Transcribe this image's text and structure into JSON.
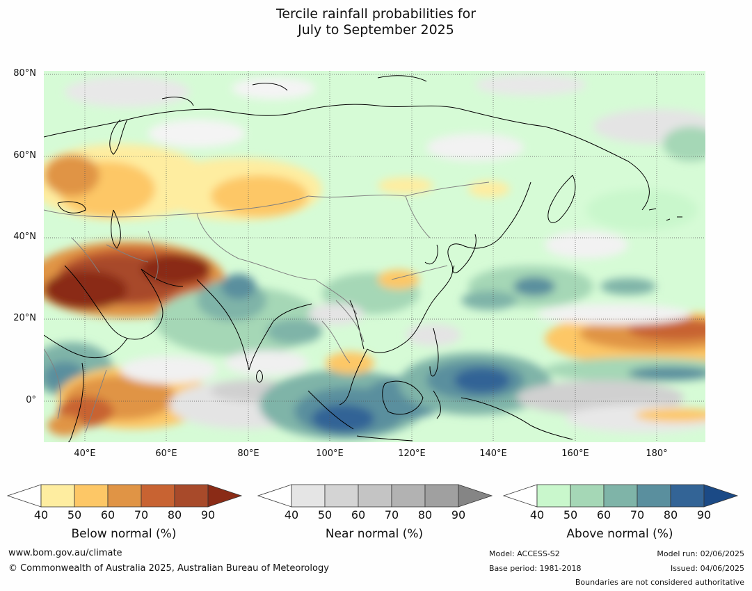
{
  "title": {
    "line1": "Tercile rainfall probabilities for",
    "line2": "July to September 2025"
  },
  "map": {
    "lat_labels": [
      "80°N",
      "60°N",
      "40°N",
      "20°N",
      "0°"
    ],
    "lon_labels": [
      "40°E",
      "60°E",
      "80°E",
      "100°E",
      "120°E",
      "140°E",
      "160°E",
      "180°"
    ],
    "extent": {
      "lon_min": 30,
      "lon_max": 192,
      "lat_min": -10,
      "lat_max": 81
    }
  },
  "legends": [
    {
      "label": "Below normal (%)",
      "ticks": [
        "40",
        "50",
        "60",
        "70",
        "80",
        "90"
      ],
      "colors": [
        "#ffffff",
        "#feeda0",
        "#fdc766",
        "#e09445",
        "#c86332",
        "#a84a2a",
        "#8a2b16"
      ]
    },
    {
      "label": "Near normal (%)",
      "ticks": [
        "40",
        "50",
        "60",
        "70",
        "80",
        "90"
      ],
      "colors": [
        "#ffffff",
        "#e5e5e5",
        "#d4d4d4",
        "#c4c4c4",
        "#b2b2b2",
        "#a0a0a0",
        "#858585"
      ]
    },
    {
      "label": "Above normal (%)",
      "ticks": [
        "40",
        "50",
        "60",
        "70",
        "80",
        "90"
      ],
      "colors": [
        "#ffffff",
        "#c9f7cc",
        "#a5d7b6",
        "#7fb4a8",
        "#5a8f9e",
        "#336496",
        "#1b4a86"
      ]
    }
  ],
  "footer": {
    "website": "www.bom.gov.au/climate",
    "copyright": "© Commonwealth of Australia 2025, Australian Bureau of Meteorology",
    "model": "Model: ACCESS-S2",
    "base_period": "Base period: 1981-2018",
    "model_run": "Model run: 02/06/2025",
    "issued": "Issued: 04/06/2025",
    "disclaimer": "Boundaries are not considered authoritative"
  }
}
